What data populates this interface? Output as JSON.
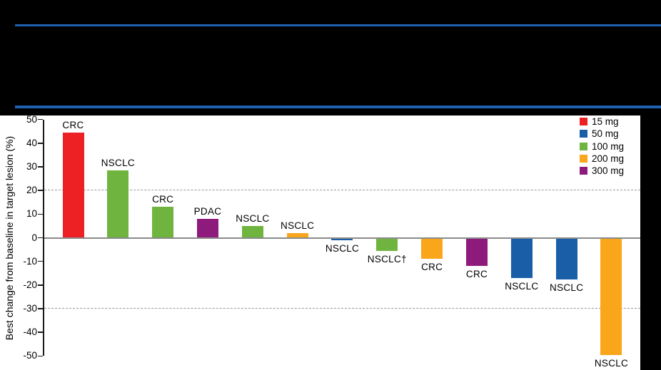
{
  "page": {
    "background_color": "#000000",
    "rule_color": "#2060AE"
  },
  "chart_data": {
    "type": "bar",
    "subtype": "waterfall",
    "title": "",
    "ylabel": "Best change from baseline in target lesion (%)",
    "ylim": [
      -50,
      50
    ],
    "yticks": [
      50,
      40,
      30,
      20,
      10,
      0,
      -10,
      -20,
      -30,
      -40,
      -50
    ],
    "reference_lines": [
      20,
      -30
    ],
    "grid": "off",
    "legend_position": "top-right",
    "legend": [
      {
        "label": "15 mg",
        "color": "#ED2024"
      },
      {
        "label": "50 mg",
        "color": "#1A5EA8"
      },
      {
        "label": "100 mg",
        "color": "#6FB43F"
      },
      {
        "label": "200 mg",
        "color": "#FAA61A"
      },
      {
        "label": "300 mg",
        "color": "#8E1A7B"
      }
    ],
    "bars": [
      {
        "label": "CRC",
        "dose": "15 mg",
        "value": 44.5
      },
      {
        "label": "NSCLC",
        "dose": "100 mg",
        "value": 28.5
      },
      {
        "label": "CRC",
        "dose": "100 mg",
        "value": 13
      },
      {
        "label": "PDAC",
        "dose": "300 mg",
        "value": 8
      },
      {
        "label": "NSCLC",
        "dose": "100 mg",
        "value": 5
      },
      {
        "label": "NSCLC",
        "dose": "200 mg",
        "value": 2
      },
      {
        "label": "NSCLC",
        "dose": "50 mg",
        "value": -1
      },
      {
        "label": "NSCLC†",
        "dose": "100 mg",
        "value": -5.5
      },
      {
        "label": "CRC",
        "dose": "200 mg",
        "value": -9
      },
      {
        "label": "CRC",
        "dose": "300 mg",
        "value": -12
      },
      {
        "label": "NSCLC",
        "dose": "50 mg",
        "value": -17
      },
      {
        "label": "NSCLC",
        "dose": "50 mg",
        "value": -17.5
      },
      {
        "label": "NSCLC",
        "dose": "200 mg",
        "value": -49.5
      }
    ],
    "axis_colors": {
      "axis": "#1a1a1a",
      "zero_line": "#8a8a8a",
      "reference_dash": "#979797"
    }
  }
}
